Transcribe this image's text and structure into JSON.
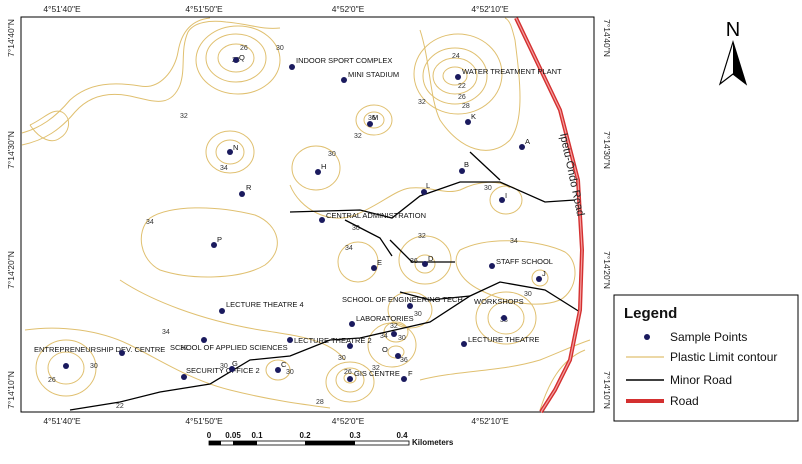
{
  "north_arrow": {
    "label": "N",
    "icon": "north-arrow-icon"
  },
  "legend": {
    "title": "Legend",
    "items": [
      {
        "label": "Sample Points",
        "icon": "sample-point-icon",
        "color": "#1a1a5e"
      },
      {
        "label": "Plastic Limit contour",
        "icon": "contour-line-icon",
        "color": "#e0c070"
      },
      {
        "label": "Minor Road",
        "icon": "minor-road-icon",
        "color": "#000000"
      },
      {
        "label": "Road",
        "icon": "road-icon",
        "color": "#d43030"
      }
    ]
  },
  "road_label": "Ipetu-Ondo Road",
  "coordinates": {
    "top": [
      "4°51'40\"E",
      "4°51'50\"E",
      "4°52'0\"E",
      "4°52'10\"E"
    ],
    "bottom": [
      "4°51'40\"E",
      "4°51'50\"E",
      "4°52'0\"E",
      "4°52'10\"E"
    ],
    "left": [
      "7°14'40\"N",
      "7°14'30\"N",
      "7°14'20\"N",
      "7°14'10\"N"
    ],
    "right": [
      "7°14'40\"N",
      "7°14'30\"N",
      "7°14'20\"N",
      "7°14'10\"N"
    ]
  },
  "scale_bar": {
    "ticks": [
      "0",
      "0.05",
      "0.1",
      "0.2",
      "0.3",
      "0.4"
    ],
    "unit": "Kilometers"
  },
  "places": [
    "INDOOR SPORT COMPLEX",
    "MINI STADIUM",
    "WATER TREATMENT PLANT",
    "CENTRAL ADMINISTRATION",
    "STAFF SCHOOL",
    "LECTURE THEATRE 4",
    "SCHOOL OF ENGINEERING TECH",
    "WORKSHOPS",
    "LABORATORIES",
    "LECTURE THEATRE 2",
    "LECTURE THEATRE",
    "ENTREPRENEURSHIP DEV. CENTRE",
    "SCHOOL OF APPLIED SCIENCES",
    "SECURITY OFFICE 2",
    "GIS CENTRE"
  ],
  "sample_points": [
    "Q",
    "M",
    "K",
    "A",
    "N",
    "H",
    "B",
    "R",
    "P",
    "E",
    "D",
    "J",
    "O",
    "F",
    "G",
    "C",
    "I",
    "L"
  ],
  "contour_values": [
    "26",
    "28",
    "30",
    "32",
    "24",
    "22",
    "26",
    "28",
    "32",
    "36",
    "32",
    "34",
    "30",
    "34",
    "34",
    "34",
    "30",
    "32",
    "36",
    "30",
    "38",
    "30",
    "32",
    "34",
    "30",
    "36",
    "26",
    "30",
    "32",
    "30",
    "28",
    "34",
    "30",
    "26",
    "30",
    "32",
    "30",
    "22"
  ]
}
